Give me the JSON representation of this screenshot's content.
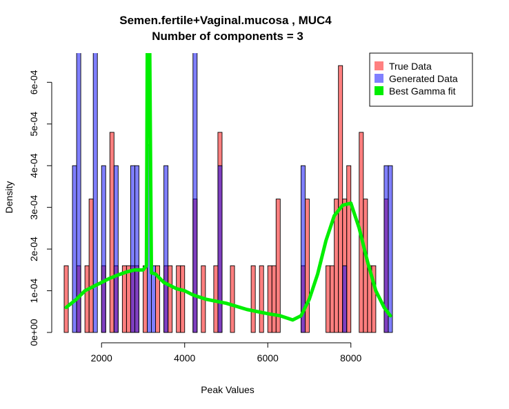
{
  "chart_data": {
    "type": "histogram",
    "title": "Semen.fertile+Vaginal.mucosa , MUC4",
    "subtitle": "Number of components =  3",
    "xlabel": "Peak Values",
    "ylabel": "Density",
    "x_ticks": [
      2000,
      4000,
      6000,
      8000
    ],
    "x_tick_labels": [
      "2000",
      "4000",
      "6000",
      "8000"
    ],
    "y_ticks": [
      0,
      0.0001,
      0.0002,
      0.0003,
      0.0004,
      0.0005,
      0.0006
    ],
    "y_tick_labels": [
      "0e+00",
      "1e-04",
      "2e-04",
      "3e-04",
      "4e-04",
      "5e-04",
      "6e-04"
    ],
    "xlim": [
      1050,
      9050
    ],
    "ylim": [
      0,
      0.00067
    ],
    "bin_width": 100,
    "legend": {
      "position": "top-right",
      "entries": [
        {
          "label": "True Data",
          "color": "#ff8080"
        },
        {
          "label": "Generated Data",
          "color": "#8080ff"
        },
        {
          "label": "Best Gamma fit",
          "color": "#00ee00"
        }
      ]
    },
    "series": [
      {
        "name": "True Data",
        "color": "#ff8080",
        "bins": [
          [
            1100,
            0.00016
          ],
          [
            1400,
            0.00016
          ],
          [
            1600,
            0.00016
          ],
          [
            1700,
            0.00032
          ],
          [
            2000,
            0.00016
          ],
          [
            2200,
            0.00048
          ],
          [
            2300,
            0.00016
          ],
          [
            2500,
            0.00016
          ],
          [
            2600,
            0.00016
          ],
          [
            2700,
            0.00016
          ],
          [
            2800,
            0.00016
          ],
          [
            3000,
            0.00016
          ],
          [
            3300,
            0.00016
          ],
          [
            3500,
            0.00016
          ],
          [
            3600,
            0.00016
          ],
          [
            3800,
            0.00016
          ],
          [
            3900,
            0.00016
          ],
          [
            4200,
            0.00032
          ],
          [
            4400,
            0.00016
          ],
          [
            4700,
            0.00016
          ],
          [
            4800,
            0.00048
          ],
          [
            5100,
            0.00016
          ],
          [
            5600,
            0.00016
          ],
          [
            5800,
            0.00016
          ],
          [
            6000,
            0.00016
          ],
          [
            6100,
            0.00016
          ],
          [
            6200,
            0.00032
          ],
          [
            6800,
            0.00016
          ],
          [
            6900,
            0.00032
          ],
          [
            7400,
            0.00016
          ],
          [
            7500,
            0.00016
          ],
          [
            7600,
            0.00032
          ],
          [
            7700,
            0.00064
          ],
          [
            7800,
            0.00032
          ],
          [
            7900,
            0.0004
          ],
          [
            8200,
            0.00048
          ],
          [
            8300,
            0.00032
          ],
          [
            8400,
            0.00016
          ],
          [
            8500,
            0.00016
          ],
          [
            8800,
            0.00032
          ]
        ]
      },
      {
        "name": "Generated Data",
        "color": "#8080ff",
        "bins": [
          [
            1300,
            0.0004
          ],
          [
            1400,
            0.0008
          ],
          [
            1800,
            0.0008
          ],
          [
            2000,
            0.0004
          ],
          [
            2300,
            0.0004
          ],
          [
            2700,
            0.0004
          ],
          [
            2800,
            0.0004
          ],
          [
            3100,
            0.00045
          ],
          [
            3200,
            0.00016
          ],
          [
            3500,
            0.0004
          ],
          [
            4200,
            0.0007
          ],
          [
            4800,
            0.0004
          ],
          [
            6800,
            0.0004
          ],
          [
            7800,
            0.00016
          ],
          [
            8800,
            0.0004
          ],
          [
            8900,
            0.0004
          ]
        ]
      },
      {
        "name": "Best Gamma fit",
        "color": "#00ee00",
        "type": "line",
        "x": [
          1150,
          1400,
          1600,
          1800,
          2000,
          2200,
          2400,
          2600,
          2800,
          3000,
          3080,
          3100,
          3130,
          3160,
          3200,
          3300,
          3500,
          3800,
          4000,
          4200,
          4500,
          5000,
          5500,
          6000,
          6300,
          6600,
          6800,
          7000,
          7200,
          7400,
          7600,
          7800,
          8000,
          8200,
          8400,
          8600,
          8800,
          8950
        ],
        "y": [
          6e-05,
          8e-05,
          0.0001,
          0.00011,
          0.00012,
          0.00013,
          0.000138,
          0.000145,
          0.00015,
          0.00015,
          0.00016,
          0.00067,
          0.00067,
          0.00067,
          0.000143,
          0.00014,
          0.00012,
          0.000105,
          0.0001,
          9e-05,
          8e-05,
          7e-05,
          5.5e-05,
          4.5e-05,
          4e-05,
          3e-05,
          4e-05,
          8e-05,
          0.00014,
          0.00022,
          0.00028,
          0.000305,
          0.00031,
          0.00025,
          0.00017,
          0.0001,
          6e-05,
          4e-05
        ]
      }
    ]
  }
}
